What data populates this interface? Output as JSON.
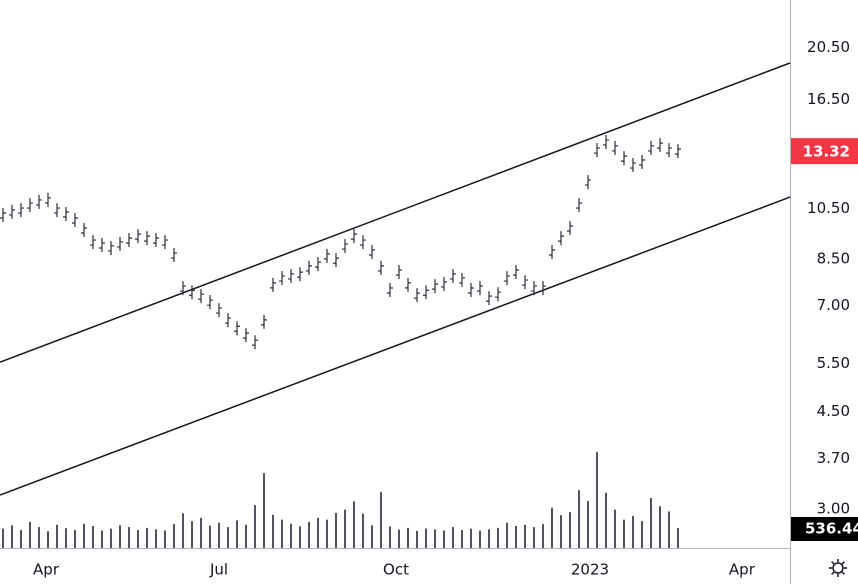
{
  "chart_data": {
    "type": "ohlc",
    "log_scale": true,
    "x": [
      0,
      1,
      2,
      3,
      4,
      5,
      6,
      7,
      8,
      9,
      10,
      11,
      12,
      13,
      14,
      15,
      16,
      17,
      18,
      19,
      20,
      21,
      22,
      23,
      24,
      25,
      26,
      27,
      28,
      29,
      30,
      31,
      32,
      33,
      34,
      35,
      36,
      37,
      38,
      39,
      40,
      41,
      42,
      43,
      44,
      45,
      46,
      47,
      48,
      49,
      50,
      51,
      52,
      53,
      54,
      55,
      56,
      57,
      58,
      59,
      60,
      61,
      62,
      63,
      64,
      65,
      66,
      67,
      68,
      69,
      70,
      71,
      72,
      73,
      74,
      75
    ],
    "values": [
      10.21,
      10.34,
      10.42,
      10.64,
      10.78,
      10.87,
      10.42,
      10.25,
      10.0,
      9.59,
      9.12,
      9.01,
      8.9,
      9.05,
      9.2,
      9.35,
      9.27,
      9.2,
      9.12,
      8.64,
      7.53,
      7.4,
      7.28,
      7.1,
      6.87,
      6.59,
      6.37,
      6.19,
      6.01,
      6.54,
      7.63,
      7.85,
      7.92,
      7.98,
      8.19,
      8.32,
      8.61,
      8.46,
      8.97,
      9.35,
      9.12,
      8.75,
      8.19,
      7.47,
      8.05,
      7.63,
      7.31,
      7.4,
      7.59,
      7.66,
      7.92,
      7.79,
      7.47,
      7.53,
      7.22,
      7.34,
      7.85,
      8.05,
      7.72,
      7.53,
      7.53,
      8.75,
      9.27,
      9.67,
      10.64,
      11.71,
      13.38,
      13.84,
      13.5,
      12.94,
      12.57,
      12.73,
      13.5,
      13.66,
      13.38,
      13.32
    ],
    "volume": [
      520,
      610,
      480,
      700,
      560,
      450,
      620,
      530,
      480,
      650,
      590,
      470,
      520,
      610,
      560,
      480,
      540,
      500,
      470,
      640,
      930,
      720,
      810,
      600,
      680,
      560,
      740,
      620,
      1150,
      2010,
      890,
      760,
      650,
      580,
      700,
      810,
      760,
      940,
      1030,
      1250,
      920,
      610,
      1500,
      580,
      490,
      540,
      460,
      520,
      500,
      470,
      560,
      480,
      520,
      470,
      500,
      540,
      680,
      590,
      620,
      560,
      640,
      1080,
      880,
      960,
      1550,
      1260,
      2570,
      1480,
      1030,
      760,
      860,
      720,
      1340,
      1120,
      980,
      536.44
    ],
    "volume_ylim": [
      0,
      2600
    ],
    "color": "#2a2e39",
    "volume_color": "#50535e",
    "last_price": 13.32,
    "last_price_color": "#f23645",
    "volume_last": 536.44,
    "xlim": [
      -0.333,
      87.444
    ],
    "xticks": [
      {
        "value": 4.78,
        "label": "Apr"
      },
      {
        "value": 24,
        "label": "Jul"
      },
      {
        "value": 43.67,
        "label": "Oct"
      },
      {
        "value": 65.22,
        "label": "2023"
      },
      {
        "value": 82.1,
        "label": "Apr"
      }
    ],
    "ylim": [
      2.55,
      25.0
    ],
    "yticks": [
      {
        "value": 20.5,
        "label": "20.50"
      },
      {
        "value": 16.5,
        "label": "16.50"
      },
      {
        "value": 10.5,
        "label": "10.50"
      },
      {
        "value": 8.5,
        "label": "8.50"
      },
      {
        "value": 7.0,
        "label": "7.00"
      },
      {
        "value": 5.5,
        "label": "5.50"
      },
      {
        "value": 4.5,
        "label": "4.50"
      },
      {
        "value": 3.7,
        "label": "3.70"
      },
      {
        "value": 3.0,
        "label": "3.00"
      }
    ],
    "trendlines": [
      {
        "x": [
          -0.333,
          87.444
        ],
        "y": [
          5.53,
          19.23
        ]
      },
      {
        "x": [
          -0.333,
          87.444
        ],
        "y": [
          3.18,
          11.0
        ]
      }
    ]
  }
}
